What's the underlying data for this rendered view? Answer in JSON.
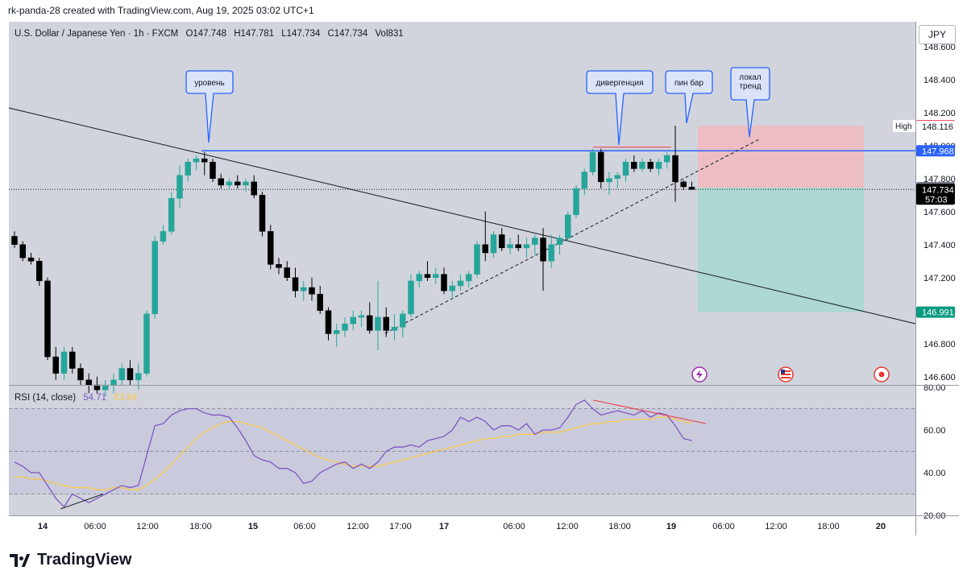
{
  "header": "rk-panda-28 created with TradingView.com, Aug 19, 2025 03:02 UTC+1",
  "legend": {
    "symbol": "U.S. Dollar / Japanese Yen · 1h · FXCM",
    "open": "O147.748",
    "high": "H147.781",
    "low": "L147.734",
    "close": "C147.734",
    "volume": "Vol831"
  },
  "currency_button": "JPY",
  "price_axis": [
    "148.600",
    "148.400",
    "148.200",
    "148.000",
    "147.800",
    "147.600",
    "147.400",
    "147.200",
    "147.000",
    "146.800",
    "146.600"
  ],
  "price_tags": {
    "high_label": "High",
    "high_value": "148.116",
    "stop": "148.120",
    "level": "147.968",
    "entry": "147.745",
    "last": "147.734",
    "countdown": "57:03",
    "target": "146.991"
  },
  "rsi": {
    "label": "RSI (14, close)",
    "value": "54.71",
    "ma_value": "63.64",
    "axis": [
      "80.00",
      "60.00",
      "40.00",
      "20.00"
    ]
  },
  "time_axis": [
    "14",
    "06:00",
    "12:00",
    "18:00",
    "15",
    "06:00",
    "12:00",
    "17:00",
    "17",
    "06:00",
    "12:00",
    "18:00",
    "19",
    "06:00",
    "12:00",
    "18:00",
    "20"
  ],
  "callouts": [
    "уровень",
    "дивергенция",
    "пин бар",
    "локал\nтренд"
  ],
  "logo_text": "TradingView",
  "colors": {
    "bull": "#26a69a",
    "bear": "#000000",
    "level_line": "#2962ff",
    "stop_zone": "#f2b8c0",
    "target_zone": "#a8d8d3",
    "rsi_line": "#7e57c2",
    "rsi_ma": "#f7c948",
    "divergence": "#f23645",
    "chart_bg": "#d1d4dc"
  },
  "chart_data": {
    "type": "candlestick",
    "interval": "1h",
    "ylim": [
      146.55,
      148.75
    ],
    "candles": [
      {
        "o": 147.45,
        "h": 147.48,
        "l": 147.38,
        "c": 147.4
      },
      {
        "o": 147.4,
        "h": 147.42,
        "l": 147.3,
        "c": 147.32
      },
      {
        "o": 147.32,
        "h": 147.35,
        "l": 147.28,
        "c": 147.3
      },
      {
        "o": 147.3,
        "h": 147.32,
        "l": 147.15,
        "c": 147.18
      },
      {
        "o": 147.18,
        "h": 147.2,
        "l": 146.7,
        "c": 146.72
      },
      {
        "o": 146.72,
        "h": 146.78,
        "l": 146.58,
        "c": 146.62
      },
      {
        "o": 146.62,
        "h": 146.78,
        "l": 146.58,
        "c": 146.75
      },
      {
        "o": 146.75,
        "h": 146.78,
        "l": 146.62,
        "c": 146.65
      },
      {
        "o": 146.65,
        "h": 146.68,
        "l": 146.55,
        "c": 146.58
      },
      {
        "o": 146.58,
        "h": 146.62,
        "l": 146.5,
        "c": 146.55
      },
      {
        "o": 146.55,
        "h": 146.6,
        "l": 146.5,
        "c": 146.52
      },
      {
        "o": 146.52,
        "h": 146.58,
        "l": 146.48,
        "c": 146.55
      },
      {
        "o": 146.55,
        "h": 146.62,
        "l": 146.5,
        "c": 146.58
      },
      {
        "o": 146.58,
        "h": 146.68,
        "l": 146.55,
        "c": 146.65
      },
      {
        "o": 146.65,
        "h": 146.7,
        "l": 146.55,
        "c": 146.58
      },
      {
        "o": 146.58,
        "h": 146.68,
        "l": 146.52,
        "c": 146.62
      },
      {
        "o": 146.62,
        "h": 147.0,
        "l": 146.6,
        "c": 146.98
      },
      {
        "o": 146.98,
        "h": 147.45,
        "l": 146.95,
        "c": 147.42
      },
      {
        "o": 147.42,
        "h": 147.52,
        "l": 147.4,
        "c": 147.48
      },
      {
        "o": 147.48,
        "h": 147.72,
        "l": 147.46,
        "c": 147.68
      },
      {
        "o": 147.68,
        "h": 147.88,
        "l": 147.62,
        "c": 147.82
      },
      {
        "o": 147.82,
        "h": 147.92,
        "l": 147.78,
        "c": 147.9
      },
      {
        "o": 147.9,
        "h": 147.94,
        "l": 147.85,
        "c": 147.92
      },
      {
        "o": 147.92,
        "h": 147.96,
        "l": 147.82,
        "c": 147.9
      },
      {
        "o": 147.9,
        "h": 147.92,
        "l": 147.78,
        "c": 147.8
      },
      {
        "o": 147.8,
        "h": 147.83,
        "l": 147.74,
        "c": 147.76
      },
      {
        "o": 147.76,
        "h": 147.8,
        "l": 147.73,
        "c": 147.78
      },
      {
        "o": 147.78,
        "h": 147.82,
        "l": 147.74,
        "c": 147.76
      },
      {
        "o": 147.76,
        "h": 147.8,
        "l": 147.72,
        "c": 147.78
      },
      {
        "o": 147.78,
        "h": 147.82,
        "l": 147.68,
        "c": 147.7
      },
      {
        "o": 147.7,
        "h": 147.72,
        "l": 147.45,
        "c": 147.48
      },
      {
        "o": 147.48,
        "h": 147.52,
        "l": 147.25,
        "c": 147.28
      },
      {
        "o": 147.28,
        "h": 147.32,
        "l": 147.22,
        "c": 147.26
      },
      {
        "o": 147.26,
        "h": 147.3,
        "l": 147.18,
        "c": 147.2
      },
      {
        "o": 147.2,
        "h": 147.26,
        "l": 147.08,
        "c": 147.12
      },
      {
        "o": 147.12,
        "h": 147.18,
        "l": 147.06,
        "c": 147.14
      },
      {
        "o": 147.14,
        "h": 147.2,
        "l": 147.06,
        "c": 147.1
      },
      {
        "o": 147.1,
        "h": 147.15,
        "l": 146.98,
        "c": 147.0
      },
      {
        "o": 147.0,
        "h": 147.02,
        "l": 146.82,
        "c": 146.86
      },
      {
        "o": 146.86,
        "h": 146.92,
        "l": 146.78,
        "c": 146.88
      },
      {
        "o": 146.88,
        "h": 146.96,
        "l": 146.84,
        "c": 146.92
      },
      {
        "o": 146.92,
        "h": 147.0,
        "l": 146.88,
        "c": 146.96
      },
      {
        "o": 146.96,
        "h": 147.0,
        "l": 146.9,
        "c": 146.97
      },
      {
        "o": 146.97,
        "h": 147.05,
        "l": 146.86,
        "c": 146.88
      },
      {
        "o": 146.88,
        "h": 147.18,
        "l": 146.76,
        "c": 146.96
      },
      {
        "o": 146.96,
        "h": 147.02,
        "l": 146.84,
        "c": 146.88
      },
      {
        "o": 146.88,
        "h": 146.98,
        "l": 146.82,
        "c": 146.9
      },
      {
        "o": 146.9,
        "h": 147.0,
        "l": 146.84,
        "c": 146.98
      },
      {
        "o": 146.98,
        "h": 147.22,
        "l": 146.96,
        "c": 147.18
      },
      {
        "o": 147.18,
        "h": 147.24,
        "l": 147.14,
        "c": 147.22
      },
      {
        "o": 147.22,
        "h": 147.3,
        "l": 147.18,
        "c": 147.2
      },
      {
        "o": 147.2,
        "h": 147.26,
        "l": 147.16,
        "c": 147.22
      },
      {
        "o": 147.22,
        "h": 147.26,
        "l": 147.1,
        "c": 147.12
      },
      {
        "o": 147.12,
        "h": 147.18,
        "l": 147.08,
        "c": 147.15
      },
      {
        "o": 147.15,
        "h": 147.22,
        "l": 147.12,
        "c": 147.18
      },
      {
        "o": 147.18,
        "h": 147.24,
        "l": 147.14,
        "c": 147.22
      },
      {
        "o": 147.22,
        "h": 147.42,
        "l": 147.2,
        "c": 147.4
      },
      {
        "o": 147.4,
        "h": 147.6,
        "l": 147.3,
        "c": 147.35
      },
      {
        "o": 147.35,
        "h": 147.48,
        "l": 147.32,
        "c": 147.46
      },
      {
        "o": 147.46,
        "h": 147.5,
        "l": 147.36,
        "c": 147.38
      },
      {
        "o": 147.38,
        "h": 147.44,
        "l": 147.34,
        "c": 147.4
      },
      {
        "o": 147.4,
        "h": 147.46,
        "l": 147.36,
        "c": 147.38
      },
      {
        "o": 147.38,
        "h": 147.44,
        "l": 147.32,
        "c": 147.4
      },
      {
        "o": 147.4,
        "h": 147.46,
        "l": 147.34,
        "c": 147.44
      },
      {
        "o": 147.44,
        "h": 147.5,
        "l": 147.12,
        "c": 147.3
      },
      {
        "o": 147.3,
        "h": 147.46,
        "l": 147.26,
        "c": 147.4
      },
      {
        "o": 147.4,
        "h": 147.46,
        "l": 147.34,
        "c": 147.44
      },
      {
        "o": 147.44,
        "h": 147.6,
        "l": 147.42,
        "c": 147.58
      },
      {
        "o": 147.58,
        "h": 147.76,
        "l": 147.56,
        "c": 147.74
      },
      {
        "o": 147.74,
        "h": 147.86,
        "l": 147.7,
        "c": 147.84
      },
      {
        "o": 147.84,
        "h": 147.98,
        "l": 147.82,
        "c": 147.96
      },
      {
        "o": 147.96,
        "h": 147.98,
        "l": 147.74,
        "c": 147.78
      },
      {
        "o": 147.78,
        "h": 147.84,
        "l": 147.7,
        "c": 147.8
      },
      {
        "o": 147.8,
        "h": 147.84,
        "l": 147.74,
        "c": 147.82
      },
      {
        "o": 147.82,
        "h": 147.92,
        "l": 147.78,
        "c": 147.9
      },
      {
        "o": 147.9,
        "h": 147.94,
        "l": 147.84,
        "c": 147.86
      },
      {
        "o": 147.86,
        "h": 147.92,
        "l": 147.84,
        "c": 147.9
      },
      {
        "o": 147.9,
        "h": 147.92,
        "l": 147.84,
        "c": 147.86
      },
      {
        "o": 147.86,
        "h": 147.92,
        "l": 147.82,
        "c": 147.9
      },
      {
        "o": 147.9,
        "h": 147.96,
        "l": 147.86,
        "c": 147.94
      },
      {
        "o": 147.94,
        "h": 148.12,
        "l": 147.66,
        "c": 147.78
      },
      {
        "o": 147.78,
        "h": 147.79,
        "l": 147.73,
        "c": 147.75
      },
      {
        "o": 147.748,
        "h": 147.781,
        "l": 147.734,
        "c": 147.734
      }
    ],
    "horizontal_level": 147.968,
    "position": {
      "entry": 147.745,
      "stop": 148.12,
      "target": 146.991
    },
    "rsi": {
      "name": "RSI (14, close)",
      "ylim": [
        20,
        80
      ],
      "bands": [
        30,
        50,
        70
      ],
      "values": [
        45,
        43,
        40,
        40,
        34,
        28,
        24,
        30,
        28,
        26,
        28,
        30,
        32,
        34,
        33,
        34,
        48,
        62,
        63,
        67,
        69,
        70,
        70,
        68,
        67,
        67,
        66,
        61,
        55,
        48,
        46,
        45,
        42,
        42,
        40,
        35,
        36,
        40,
        42,
        44,
        45,
        42,
        44,
        42,
        45,
        50,
        52,
        52,
        53,
        52,
        55,
        56,
        57,
        60,
        66,
        64,
        66,
        64,
        60,
        62,
        62,
        60,
        63,
        58,
        60,
        60,
        61,
        66,
        72,
        74,
        70,
        67,
        68,
        69,
        68,
        67,
        69,
        66,
        68,
        67,
        62,
        56,
        55
      ],
      "ma_values": [
        38,
        38,
        37,
        37,
        36,
        35,
        34,
        33,
        33,
        33,
        32,
        32,
        33,
        33,
        32,
        32,
        34,
        37,
        40,
        44,
        48,
        52,
        56,
        59,
        61,
        63,
        64,
        64,
        63,
        62,
        61,
        59,
        57,
        55,
        53,
        51,
        49,
        47,
        46,
        45,
        44,
        43,
        43,
        43,
        43,
        44,
        45,
        46,
        47,
        48,
        49,
        50,
        51,
        52,
        53,
        54,
        55,
        56,
        56,
        57,
        57,
        58,
        58,
        58,
        59,
        59,
        59,
        60,
        61,
        62,
        63,
        63,
        64,
        64,
        65,
        65,
        65,
        65,
        66,
        66,
        65,
        64,
        63
      ]
    }
  }
}
